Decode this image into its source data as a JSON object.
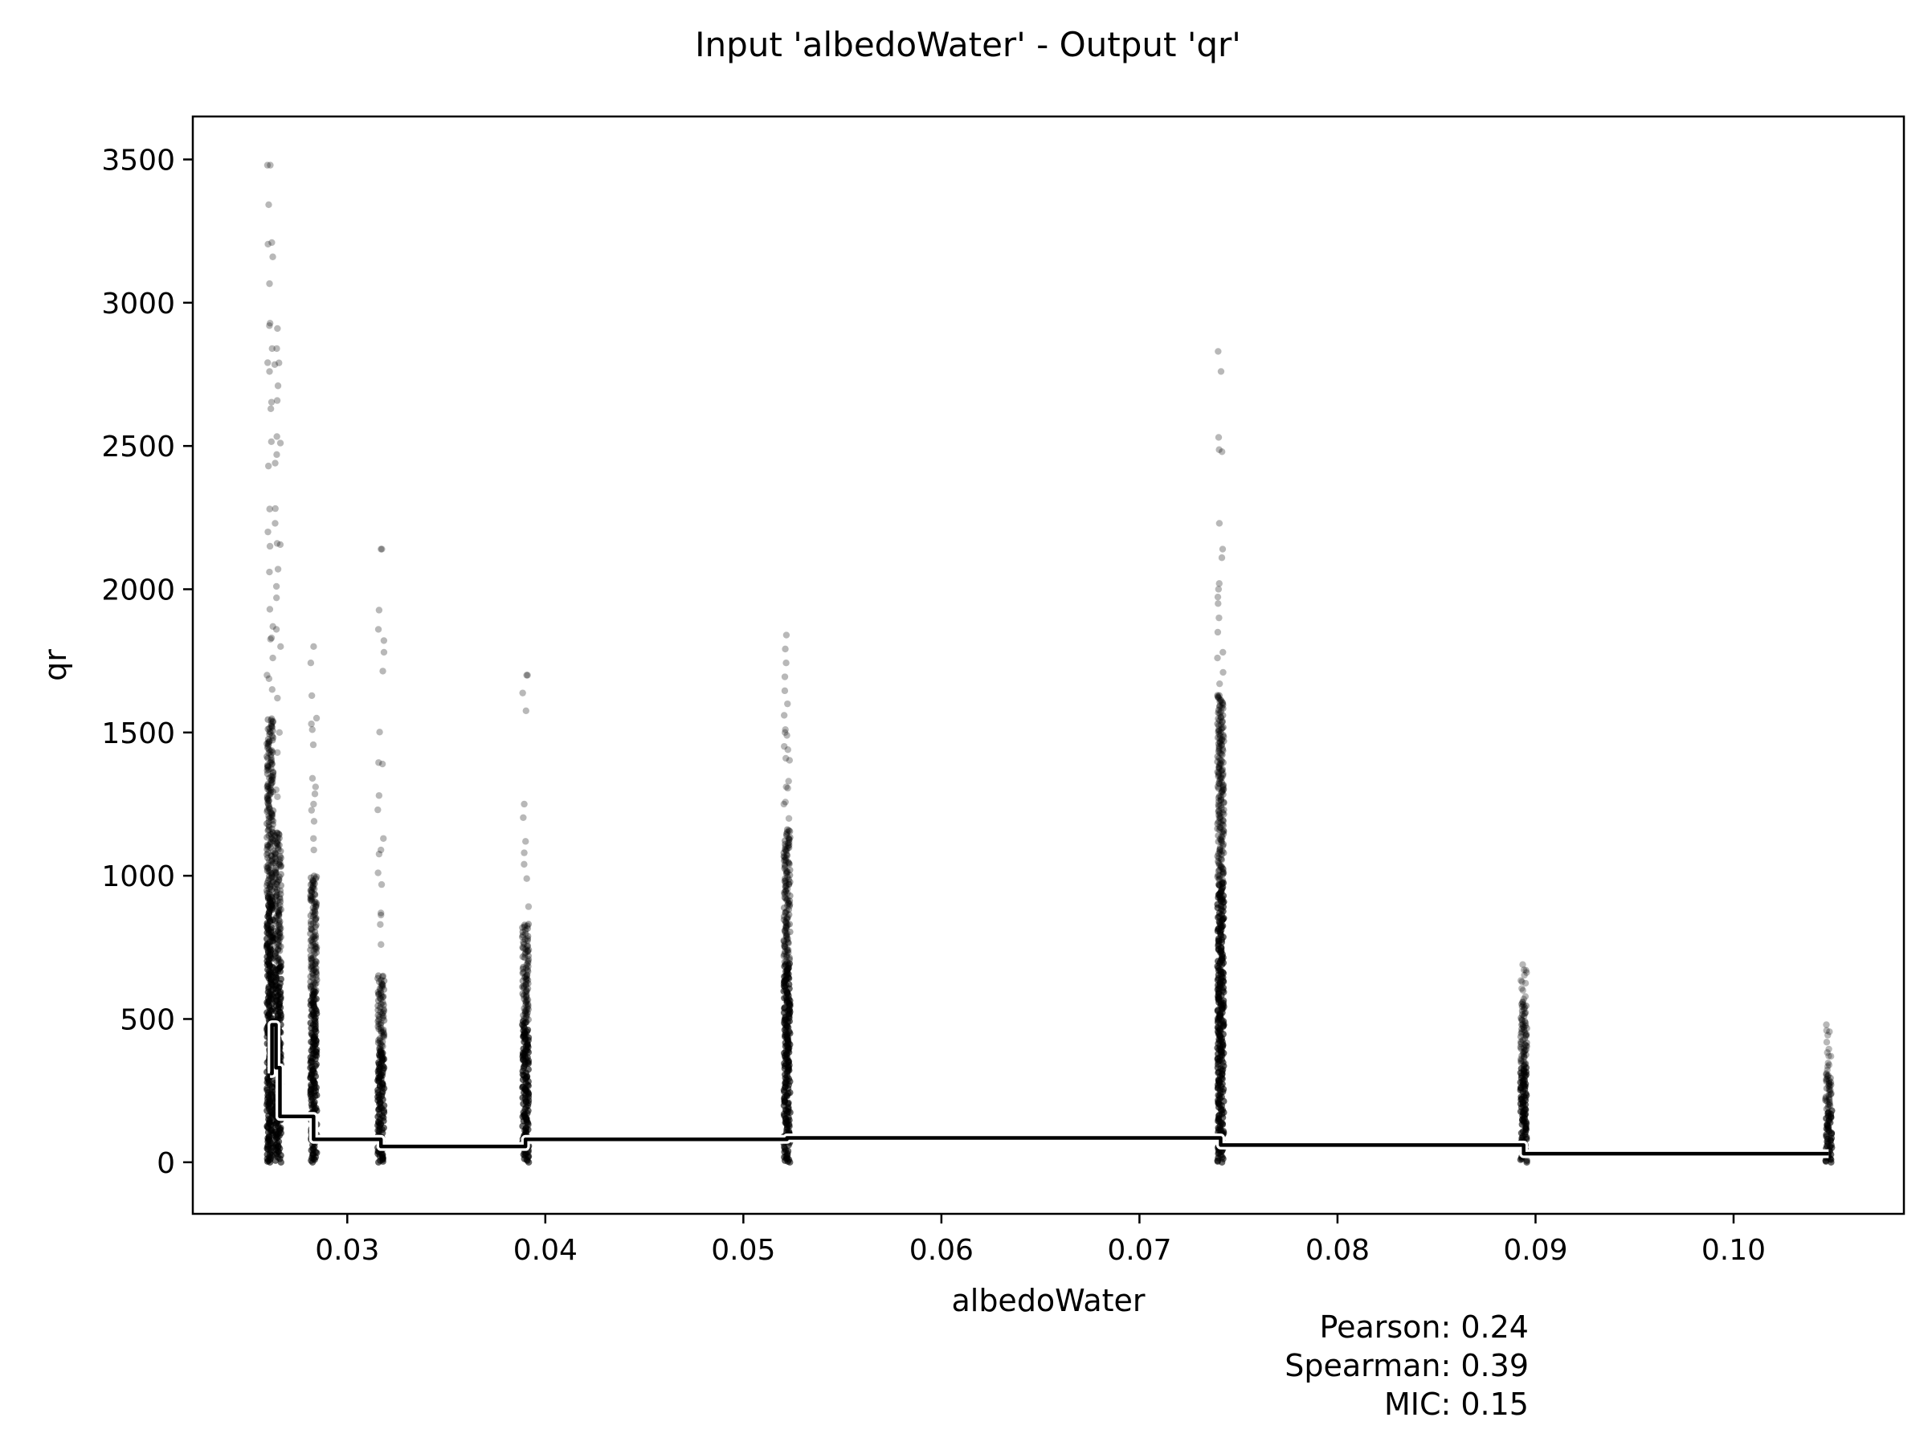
{
  "chart_data": {
    "type": "scatter",
    "title": "Input 'albedoWater' - Output 'qr'",
    "xlabel": "albedoWater",
    "ylabel": "qr",
    "xlim": [
      0.0222,
      0.1086
    ],
    "ylim": [
      -180,
      3650
    ],
    "x_ticks": [
      0.03,
      0.04,
      0.05,
      0.06,
      0.07,
      0.08,
      0.09,
      0.1
    ],
    "x_tick_labels": [
      "0.03",
      "0.04",
      "0.05",
      "0.06",
      "0.07",
      "0.08",
      "0.09",
      "0.10"
    ],
    "y_ticks": [
      0,
      500,
      1000,
      1500,
      2000,
      2500,
      3000,
      3500
    ],
    "y_tick_labels": [
      "0",
      "500",
      "1000",
      "1500",
      "2000",
      "2500",
      "3000",
      "3500"
    ],
    "grid": false,
    "point_color": "#000000",
    "line_color": "#000000",
    "series": [
      {
        "type": "scatter",
        "clusters": [
          {
            "x": 0.0261,
            "max": 3480,
            "dense_max": 1550,
            "outliers": [
              3480,
              3210,
              3160,
              2920,
              2840,
              2760,
              2630,
              2430,
              2280,
              2200,
              2150,
              2060,
              1930,
              1870,
              1830,
              1760,
              1700,
              1650
            ]
          },
          {
            "x": 0.0265,
            "max": 2910,
            "dense_max": 1150,
            "outliers": [
              2910,
              2840,
              2790,
              2710,
              2510,
              2470,
              2440,
              2230,
              2160,
              2070,
              2010,
              1970,
              1860,
              1800,
              1620,
              1500,
              1430,
              1300
            ]
          },
          {
            "x": 0.0283,
            "max": 1800,
            "dense_max": 1000,
            "outliers": [
              1800,
              1550,
              1530,
              1510,
              1340,
              1310,
              1250,
              1190,
              1130,
              1090
            ]
          },
          {
            "x": 0.0317,
            "max": 2140,
            "dense_max": 650,
            "outliers": [
              2140,
              1860,
              1780,
              1390,
              1280,
              1230,
              1130,
              1090,
              1010,
              870,
              830,
              760
            ]
          },
          {
            "x": 0.039,
            "max": 1700,
            "dense_max": 830,
            "outliers": [
              1700,
              1250,
              1120,
              1080,
              1040,
              990
            ]
          },
          {
            "x": 0.0522,
            "max": 1840,
            "dense_max": 1160,
            "outliers": [
              1840,
              1600,
              1560,
              1510,
              1490,
              1440,
              1410,
              1330,
              1310,
              1250,
              1200
            ]
          },
          {
            "x": 0.0741,
            "max": 2830,
            "dense_max": 1630,
            "outliers": [
              2830,
              2760,
              2530,
              2480,
              2140,
              2110,
              2020,
              2000,
              1950,
              1900,
              1850,
              1780,
              1760,
              1710,
              1670
            ]
          },
          {
            "x": 0.0894,
            "max": 690,
            "dense_max": 560,
            "outliers": [
              690,
              670,
              630,
              600
            ]
          },
          {
            "x": 0.1048,
            "max": 480,
            "dense_max": 310,
            "outliers": [
              480,
              460,
              370,
              340
            ]
          }
        ]
      },
      {
        "type": "step-line",
        "points": [
          [
            0.0261,
            310
          ],
          [
            0.0262,
            480
          ],
          [
            0.0264,
            330
          ],
          [
            0.0266,
            160
          ],
          [
            0.0283,
            80
          ],
          [
            0.0317,
            55
          ],
          [
            0.039,
            80
          ],
          [
            0.0522,
            85
          ],
          [
            0.0741,
            60
          ],
          [
            0.0894,
            30
          ],
          [
            0.1048,
            30
          ]
        ]
      }
    ],
    "annotations": {
      "pearson": "Pearson: 0.24",
      "spearman": "Spearman: 0.39",
      "mic": "MIC: 0.15"
    }
  }
}
